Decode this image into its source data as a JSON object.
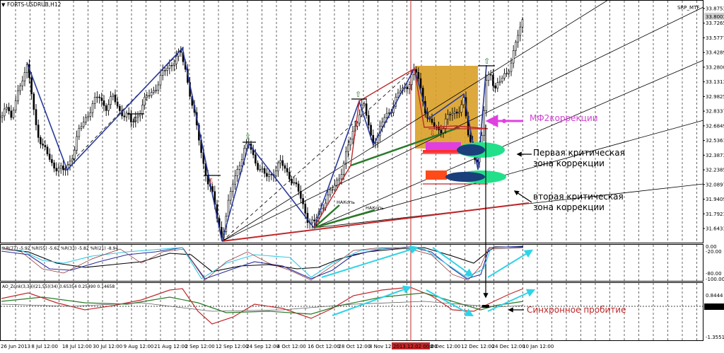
{
  "window": {
    "symbol_title": "FORTS-USDRUB,H12",
    "indicator_name": "SRP_MTF"
  },
  "chart_data": {
    "type": "candlestick",
    "price_axis": {
      "ticks": [
        "33.8753",
        "33.7265",
        "33.5777",
        "33.4289",
        "33.2800",
        "33.1313",
        "32.9825",
        "32.8337",
        "32.6849",
        "32.5361",
        "32.3873",
        "32.2385",
        "32.0897",
        "31.9409",
        "31.7921",
        "31.6433"
      ],
      "current_price": "33.8003",
      "range": [
        31.56,
        33.95
      ]
    },
    "time_axis": {
      "ticks": [
        "26 Jun 2013",
        "8 Jul 12:00",
        "18 Jul 12:00",
        "30 Jul 12:00",
        "9 Aug 12:00",
        "21 Aug 12:00",
        "2 Sep 12:00",
        "12 Sep 12:00",
        "24 Sep 12:00",
        "4 Oct 12:00",
        "16 Oct 12:00",
        "28 Oct 12:00",
        "8 Nov 12:00",
        "20 Nov 12:00",
        "2 Dec 12:00",
        "12 Dec 12:00",
        "24 Dec 12:00",
        "10 Jan 12:00"
      ],
      "highlighted_label": "2013.12.02 00:00"
    },
    "price_path": [
      [
        0,
        32.75
      ],
      [
        8,
        32.98
      ],
      [
        16,
        32.75
      ],
      [
        24,
        33.06
      ],
      [
        32,
        33.22
      ],
      [
        38,
        33.3
      ],
      [
        44,
        33.08
      ],
      [
        52,
        32.7
      ],
      [
        60,
        32.5
      ],
      [
        68,
        32.42
      ],
      [
        76,
        32.33
      ],
      [
        84,
        32.28
      ],
      [
        90,
        32.25
      ],
      [
        96,
        32.34
      ],
      [
        104,
        32.46
      ],
      [
        112,
        32.66
      ],
      [
        120,
        32.8
      ],
      [
        130,
        32.92
      ],
      [
        140,
        33.02
      ],
      [
        150,
        32.92
      ],
      [
        160,
        33.0
      ],
      [
        170,
        32.88
      ],
      [
        180,
        32.82
      ],
      [
        186,
        32.74
      ],
      [
        194,
        32.84
      ],
      [
        202,
        32.94
      ],
      [
        212,
        33.04
      ],
      [
        222,
        33.14
      ],
      [
        232,
        33.26
      ],
      [
        242,
        33.36
      ],
      [
        250,
        33.42
      ],
      [
        256,
        33.44
      ],
      [
        262,
        33.3
      ],
      [
        270,
        33.02
      ],
      [
        278,
        32.7
      ],
      [
        286,
        32.4
      ],
      [
        294,
        32.18
      ],
      [
        302,
        31.98
      ],
      [
        308,
        31.75
      ],
      [
        314,
        31.61
      ],
      [
        322,
        31.9
      ],
      [
        330,
        32.15
      ],
      [
        338,
        32.35
      ],
      [
        346,
        32.48
      ],
      [
        352,
        32.53
      ],
      [
        360,
        32.4
      ],
      [
        368,
        32.28
      ],
      [
        376,
        32.2
      ],
      [
        386,
        32.26
      ],
      [
        396,
        32.34
      ],
      [
        404,
        32.28
      ],
      [
        412,
        32.2
      ],
      [
        420,
        32.08
      ],
      [
        428,
        31.94
      ],
      [
        436,
        31.78
      ],
      [
        444,
        31.72
      ],
      [
        452,
        31.86
      ],
      [
        460,
        31.98
      ],
      [
        470,
        32.06
      ],
      [
        480,
        32.22
      ],
      [
        490,
        32.44
      ],
      [
        500,
        32.68
      ],
      [
        508,
        32.86
      ],
      [
        514,
        32.94
      ],
      [
        520,
        32.76
      ],
      [
        526,
        32.58
      ],
      [
        534,
        32.62
      ],
      [
        544,
        32.8
      ],
      [
        556,
        32.94
      ],
      [
        566,
        33.06
      ],
      [
        576,
        33.14
      ],
      [
        584,
        33.26
      ],
      [
        590,
        33.24
      ],
      [
        598,
        33.0
      ],
      [
        606,
        32.78
      ],
      [
        614,
        32.7
      ],
      [
        622,
        32.68
      ],
      [
        632,
        32.8
      ],
      [
        642,
        32.84
      ],
      [
        650,
        32.92
      ],
      [
        656,
        32.98
      ],
      [
        662,
        32.62
      ],
      [
        668,
        32.48
      ],
      [
        676,
        32.38
      ],
      [
        682,
        32.62
      ],
      [
        688,
        33.18
      ],
      [
        694,
        33.28
      ],
      [
        700,
        33.1
      ],
      [
        708,
        33.16
      ],
      [
        716,
        33.26
      ],
      [
        724,
        33.4
      ],
      [
        730,
        33.56
      ],
      [
        736,
        33.7
      ],
      [
        742,
        33.88
      ]
    ],
    "annotations": [
      "МФ2коррекции",
      "Первая критическая",
      "зона коррекции",
      "вторая критическая",
      "зона коррекции",
      "Синхронное пробитие",
      "НАКопь",
      "НАКопь"
    ],
    "oscillator": {
      "title": "%R(77) -5.92 %R(55) -5.62 %R(33) -5.82 %R(21) -8.94",
      "ticks": [
        "0.00",
        "-20.00",
        "-80.00",
        "-100.00"
      ]
    },
    "ao_panel": {
      "title": "AO_Zonk(3,34)(21,55)(34) 0.65354 0.25490 0.14658",
      "ticks": [
        "0.8444",
        "0.0000",
        "-1.3551"
      ]
    },
    "colors": {
      "candles": "#000000",
      "zone_box": "#d9a028",
      "magenta_bar": "#e040e0",
      "orange_bar": "#ff4a1a",
      "ellipse_green": "#22e08a",
      "ellipse_navy": "#1a3f7a",
      "red_line": "#c0282a",
      "green_line": "#2a7a28",
      "blue_line": "#2a3a9a",
      "cyan_arrow": "#2fd3e8",
      "annotation_magenta": "#d040d0"
    }
  }
}
